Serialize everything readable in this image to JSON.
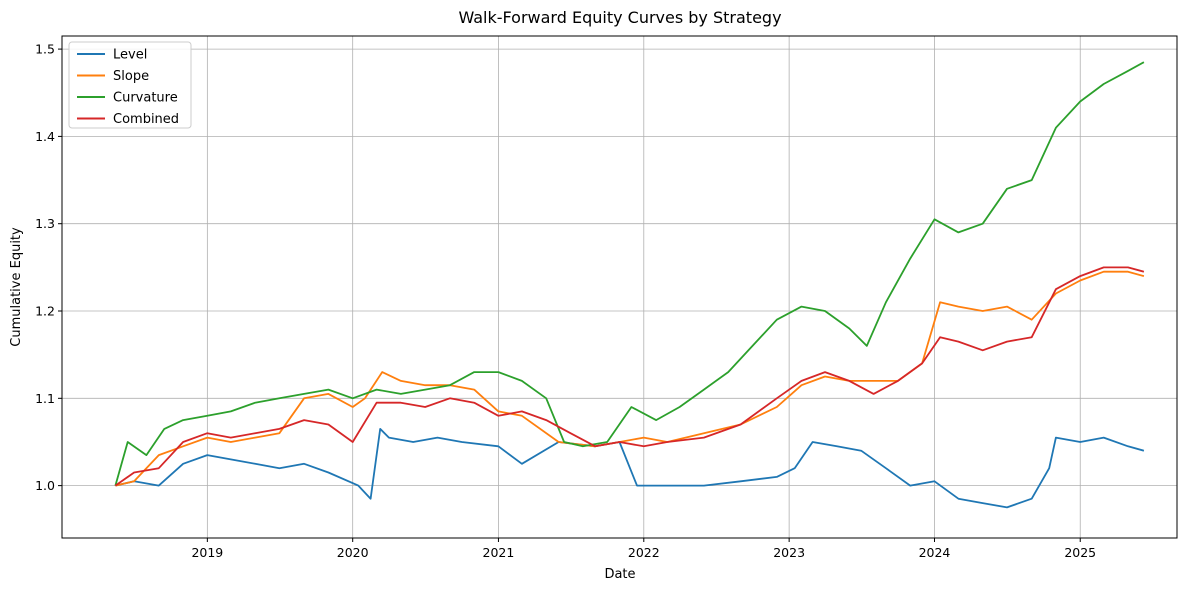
{
  "chart_data": {
    "type": "line",
    "title": "Walk-Forward Equity Curves by Strategy",
    "xlabel": "Date",
    "ylabel": "Cumulative Equity",
    "xlim": [
      "2018-01-01",
      "2025-09-01"
    ],
    "ylim": [
      0.94,
      1.515
    ],
    "x_ticks": [
      "2019",
      "2020",
      "2021",
      "2022",
      "2023",
      "2024",
      "2025"
    ],
    "y_ticks": [
      "1.0",
      "1.1",
      "1.2",
      "1.3",
      "1.4",
      "1.5"
    ],
    "grid": true,
    "legend_position": "top-left",
    "series": [
      {
        "name": "Level",
        "color": "#1f77b4",
        "x": [
          "2018-05-15",
          "2018-07-01",
          "2018-09-01",
          "2018-11-01",
          "2019-01-01",
          "2019-03-01",
          "2019-05-01",
          "2019-07-01",
          "2019-09-01",
          "2019-11-01",
          "2020-01-15",
          "2020-02-15",
          "2020-03-10",
          "2020-04-01",
          "2020-06-01",
          "2020-08-01",
          "2020-10-01",
          "2021-01-01",
          "2021-03-01",
          "2021-06-01",
          "2021-09-01",
          "2021-11-01",
          "2021-12-15",
          "2022-03-01",
          "2022-06-01",
          "2022-09-01",
          "2022-12-01",
          "2023-01-15",
          "2023-03-01",
          "2023-05-01",
          "2023-07-01",
          "2023-09-01",
          "2023-11-01",
          "2024-01-01",
          "2024-03-01",
          "2024-05-01",
          "2024-07-01",
          "2024-09-01",
          "2024-10-15",
          "2024-11-01",
          "2025-01-01",
          "2025-03-01",
          "2025-05-01",
          "2025-06-10"
        ],
        "values": [
          1.0,
          1.005,
          1.0,
          1.025,
          1.035,
          1.03,
          1.025,
          1.02,
          1.025,
          1.015,
          1.0,
          0.985,
          1.065,
          1.055,
          1.05,
          1.055,
          1.05,
          1.045,
          1.025,
          1.05,
          1.045,
          1.05,
          1.0,
          1.0,
          1.0,
          1.005,
          1.01,
          1.02,
          1.05,
          1.045,
          1.04,
          1.02,
          1.0,
          1.005,
          0.985,
          0.98,
          0.975,
          0.985,
          1.02,
          1.055,
          1.05,
          1.055,
          1.045,
          1.04
        ]
      },
      {
        "name": "Slope",
        "color": "#ff7f0e",
        "x": [
          "2018-05-15",
          "2018-07-01",
          "2018-09-01",
          "2018-11-01",
          "2019-01-01",
          "2019-03-01",
          "2019-05-01",
          "2019-07-01",
          "2019-09-01",
          "2019-11-01",
          "2020-01-01",
          "2020-02-01",
          "2020-03-15",
          "2020-05-01",
          "2020-07-01",
          "2020-09-01",
          "2020-11-01",
          "2021-01-01",
          "2021-03-01",
          "2021-06-01",
          "2021-09-01",
          "2021-11-01",
          "2022-01-01",
          "2022-03-01",
          "2022-06-01",
          "2022-09-01",
          "2022-12-01",
          "2023-02-01",
          "2023-04-01",
          "2023-06-01",
          "2023-08-01",
          "2023-10-01",
          "2023-12-01",
          "2024-01-15",
          "2024-03-01",
          "2024-05-01",
          "2024-07-01",
          "2024-09-01",
          "2024-11-01",
          "2025-01-01",
          "2025-03-01",
          "2025-05-01",
          "2025-06-10"
        ],
        "values": [
          1.0,
          1.005,
          1.035,
          1.045,
          1.055,
          1.05,
          1.055,
          1.06,
          1.1,
          1.105,
          1.09,
          1.1,
          1.13,
          1.12,
          1.115,
          1.115,
          1.11,
          1.085,
          1.08,
          1.05,
          1.045,
          1.05,
          1.055,
          1.05,
          1.06,
          1.07,
          1.09,
          1.115,
          1.125,
          1.12,
          1.12,
          1.12,
          1.14,
          1.21,
          1.205,
          1.2,
          1.205,
          1.19,
          1.22,
          1.235,
          1.245,
          1.245,
          1.24
        ]
      },
      {
        "name": "Curvature",
        "color": "#2ca02c",
        "x": [
          "2018-05-15",
          "2018-06-15",
          "2018-08-01",
          "2018-09-15",
          "2018-11-01",
          "2019-01-01",
          "2019-03-01",
          "2019-05-01",
          "2019-07-01",
          "2019-09-01",
          "2019-11-01",
          "2020-01-01",
          "2020-03-01",
          "2020-05-01",
          "2020-07-01",
          "2020-09-01",
          "2020-11-01",
          "2021-01-01",
          "2021-03-01",
          "2021-05-01",
          "2021-06-15",
          "2021-08-01",
          "2021-10-01",
          "2021-12-01",
          "2022-02-01",
          "2022-04-01",
          "2022-06-01",
          "2022-08-01",
          "2022-10-01",
          "2022-12-01",
          "2023-02-01",
          "2023-04-01",
          "2023-06-01",
          "2023-07-15",
          "2023-09-01",
          "2023-11-01",
          "2024-01-01",
          "2024-03-01",
          "2024-05-01",
          "2024-07-01",
          "2024-09-01",
          "2024-11-01",
          "2025-01-01",
          "2025-03-01",
          "2025-05-01",
          "2025-06-10"
        ],
        "values": [
          1.0,
          1.05,
          1.035,
          1.065,
          1.075,
          1.08,
          1.085,
          1.095,
          1.1,
          1.105,
          1.11,
          1.1,
          1.11,
          1.105,
          1.11,
          1.115,
          1.13,
          1.13,
          1.12,
          1.1,
          1.05,
          1.045,
          1.05,
          1.09,
          1.075,
          1.09,
          1.11,
          1.13,
          1.16,
          1.19,
          1.205,
          1.2,
          1.18,
          1.16,
          1.21,
          1.26,
          1.305,
          1.29,
          1.3,
          1.34,
          1.35,
          1.41,
          1.44,
          1.46,
          1.475,
          1.485
        ]
      },
      {
        "name": "Combined",
        "color": "#d62728",
        "x": [
          "2018-05-15",
          "2018-07-01",
          "2018-09-01",
          "2018-11-01",
          "2019-01-01",
          "2019-03-01",
          "2019-05-01",
          "2019-07-01",
          "2019-09-01",
          "2019-11-01",
          "2020-01-01",
          "2020-03-01",
          "2020-05-01",
          "2020-07-01",
          "2020-09-01",
          "2020-11-01",
          "2021-01-01",
          "2021-03-01",
          "2021-05-01",
          "2021-07-01",
          "2021-09-01",
          "2021-11-01",
          "2022-01-01",
          "2022-03-01",
          "2022-06-01",
          "2022-09-01",
          "2022-12-01",
          "2023-02-01",
          "2023-04-01",
          "2023-06-01",
          "2023-08-01",
          "2023-10-01",
          "2023-12-01",
          "2024-01-15",
          "2024-03-01",
          "2024-05-01",
          "2024-07-01",
          "2024-09-01",
          "2024-11-01",
          "2025-01-01",
          "2025-03-01",
          "2025-05-01",
          "2025-06-10"
        ],
        "values": [
          1.0,
          1.015,
          1.02,
          1.05,
          1.06,
          1.055,
          1.06,
          1.065,
          1.075,
          1.07,
          1.05,
          1.095,
          1.095,
          1.09,
          1.1,
          1.095,
          1.08,
          1.085,
          1.075,
          1.06,
          1.045,
          1.05,
          1.045,
          1.05,
          1.055,
          1.07,
          1.1,
          1.12,
          1.13,
          1.12,
          1.105,
          1.12,
          1.14,
          1.17,
          1.165,
          1.155,
          1.165,
          1.17,
          1.225,
          1.24,
          1.25,
          1.25,
          1.245
        ]
      }
    ]
  }
}
